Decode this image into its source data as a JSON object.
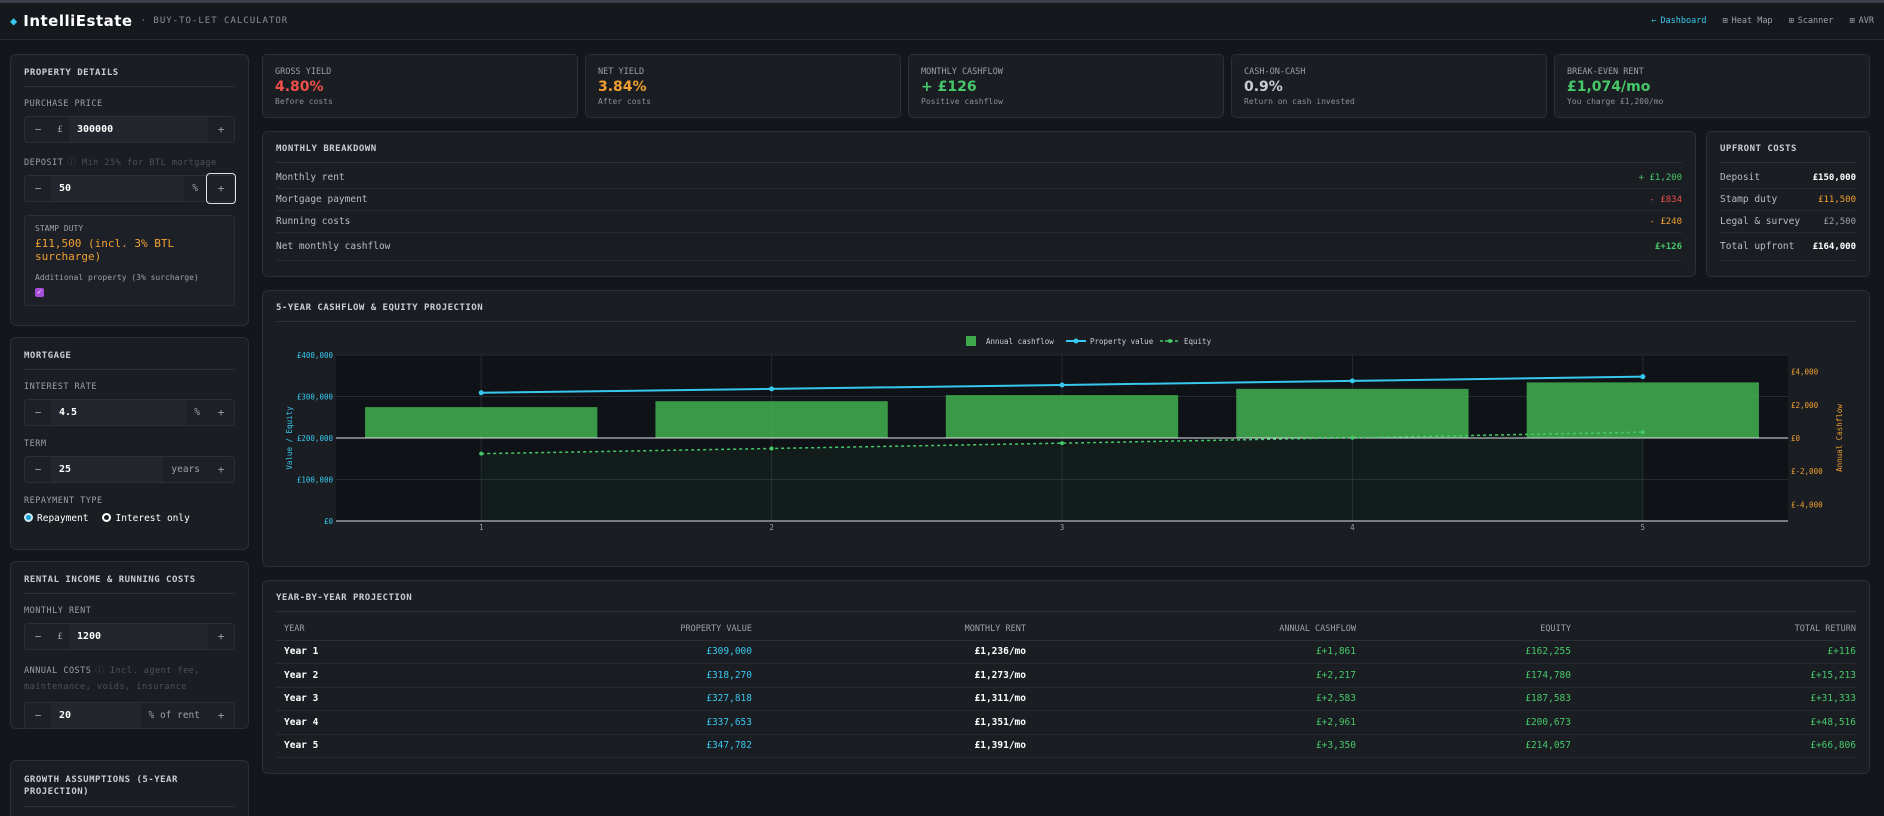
{
  "app": {
    "name": "IntelliEstate",
    "subtitle": "BUY-TO-LET CALCULATOR",
    "nav": [
      {
        "label": "Dashboard",
        "icon": "arrow-icon",
        "active": true
      },
      {
        "label": "Heat Map",
        "icon": "grid-icon",
        "active": false
      },
      {
        "label": "Scanner",
        "icon": "scan-icon",
        "active": false
      },
      {
        "label": "AVR",
        "icon": "chart-icon",
        "active": false
      }
    ]
  },
  "property": {
    "title": "PROPERTY DETAILS",
    "purchase_label": "PURCHASE PRICE",
    "currency": "£",
    "purchase_value": "300000",
    "deposit_label": "DEPOSIT",
    "deposit_hint": "ⓘ Min 25% for BTL mortgage",
    "deposit_value": "50",
    "deposit_unit": "%",
    "stamp_label": "STAMP DUTY",
    "stamp_value": "£11,500 (incl. 3% BTL surcharge)",
    "additional_label": "Additional property (3% surcharge)",
    "additional_checked": true
  },
  "mortgage": {
    "title": "MORTGAGE",
    "rate_label": "INTEREST RATE",
    "rate_value": "4.5",
    "rate_unit": "%",
    "term_label": "TERM",
    "term_value": "25",
    "term_unit": "years",
    "repayment_label": "REPAYMENT TYPE",
    "option_repayment": "Repayment",
    "option_interest": "Interest only",
    "selected": "Repayment"
  },
  "rental": {
    "title": "RENTAL INCOME & RUNNING COSTS",
    "rent_label": "MONTHLY RENT",
    "rent_value": "1200",
    "costs_label": "ANNUAL COSTS",
    "costs_hint": "ⓘ Incl. agent fee, maintenance, voids, insurance",
    "costs_value": "20",
    "costs_unit": "% of rent"
  },
  "growth": {
    "title": "GROWTH ASSUMPTIONS (5-YEAR PROJECTION)"
  },
  "kpis": [
    {
      "label": "GROSS YIELD",
      "value": "4.80%",
      "sub": "Before costs",
      "color": "#f0504a"
    },
    {
      "label": "NET YIELD",
      "value": "3.84%",
      "sub": "After costs",
      "color": "#f0a030"
    },
    {
      "label": "MONTHLY CASHFLOW",
      "value": "+ £126",
      "sub": "Positive cashflow",
      "color": "#46c86a"
    },
    {
      "label": "CASH-ON-CASH",
      "value": "0.9%",
      "sub": "Return on cash invested",
      "color": "#c9ced6"
    },
    {
      "label": "BREAK-EVEN RENT",
      "value": "£1,074/mo",
      "sub": "You charge £1,200/mo",
      "color": "#46c86a"
    }
  ],
  "breakdown": {
    "title": "MONTHLY BREAKDOWN",
    "rows": [
      {
        "label": "Monthly rent",
        "value": "+ £1,200",
        "color": "#46c86a"
      },
      {
        "label": "Mortgage payment",
        "value": "- £834",
        "color": "#f0504a"
      },
      {
        "label": "Running costs",
        "value": "- £240",
        "color": "#f0a030"
      },
      {
        "label": "Net monthly cashflow",
        "value": "£+126",
        "color": "#46c86a"
      }
    ]
  },
  "upfront": {
    "title": "UPFRONT COSTS",
    "rows": [
      {
        "label": "Deposit",
        "value": "£150,000",
        "color": "#ffffff"
      },
      {
        "label": "Stamp duty",
        "value": "£11,500",
        "color": "#f0a030"
      },
      {
        "label": "Legal & survey",
        "value": "£2,500",
        "color": "#9aa0aa"
      },
      {
        "label": "Total upfront",
        "value": "£164,000",
        "color": "#ffffff"
      }
    ]
  },
  "chart_panel_title": "5-YEAR CASHFLOW & EQUITY PROJECTION",
  "chart_data": {
    "type": "bar",
    "title": "",
    "x": [
      1,
      2,
      3,
      4,
      5
    ],
    "legend": [
      "Annual cashflow",
      "Property value",
      "Equity"
    ],
    "legend_position": "top-center",
    "ylabel_left": "Value / Equity",
    "ylabel_right": "Annual Cashflow",
    "ylim_left": [
      0,
      400000
    ],
    "ylim_right": [
      -5000,
      5000
    ],
    "yticks_left": [
      "£0",
      "£100,000",
      "£200,000",
      "£300,000",
      "£400,000"
    ],
    "yticks_right": [
      "£-4,000",
      "£-2,000",
      "£0",
      "£2,000",
      "£4,000"
    ],
    "series": [
      {
        "name": "Annual cashflow",
        "type": "bar",
        "axis": "right",
        "color": "#3fa94b",
        "values": [
          1861,
          2217,
          2583,
          2961,
          3350
        ]
      },
      {
        "name": "Property value",
        "type": "line",
        "axis": "left",
        "color": "#38c8ef",
        "values": [
          309000,
          318270,
          327818,
          337653,
          347782
        ]
      },
      {
        "name": "Equity",
        "type": "line-dashed",
        "axis": "left",
        "color": "#46c86a",
        "values": [
          162255,
          174780,
          187583,
          200673,
          214057
        ]
      }
    ],
    "grid": true
  },
  "projection": {
    "title": "YEAR-BY-YEAR PROJECTION",
    "columns": [
      "YEAR",
      "PROPERTY VALUE",
      "MONTHLY RENT",
      "ANNUAL CASHFLOW",
      "EQUITY",
      "TOTAL RETURN"
    ],
    "rows": [
      [
        "Year 1",
        "£309,000",
        "£1,236/mo",
        "£+1,861",
        "£162,255",
        "£+116"
      ],
      [
        "Year 2",
        "£318,270",
        "£1,273/mo",
        "£+2,217",
        "£174,780",
        "£+15,213"
      ],
      [
        "Year 3",
        "£327,818",
        "£1,311/mo",
        "£+2,583",
        "£187,583",
        "£+31,333"
      ],
      [
        "Year 4",
        "£337,653",
        "£1,351/mo",
        "£+2,961",
        "£200,673",
        "£+48,516"
      ],
      [
        "Year 5",
        "£347,782",
        "£1,391/mo",
        "£+3,350",
        "£214,057",
        "£+66,806"
      ]
    ]
  }
}
